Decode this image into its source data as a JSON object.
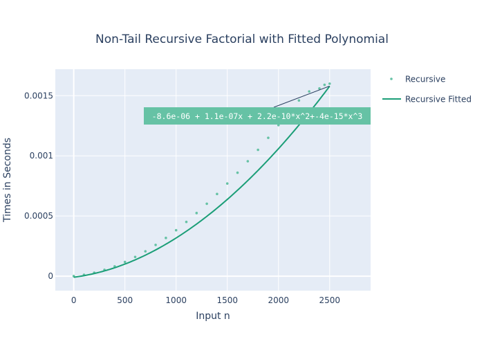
{
  "chart_data": {
    "type": "scatter",
    "title": "Non-Tail Recursive Factorial with Fitted Polynomial",
    "xlabel": "Input n",
    "ylabel": "Times in Seconds",
    "xlim": [
      -180,
      2900
    ],
    "ylim": [
      -0.00012,
      0.00172
    ],
    "xticks": [
      0,
      500,
      1000,
      1500,
      2000,
      2500
    ],
    "xtick_labels": [
      "0",
      "500",
      "1000",
      "1500",
      "2000",
      "2500"
    ],
    "yticks": [
      0,
      0.0005,
      0.001,
      0.0015
    ],
    "ytick_labels": [
      "0",
      "0.0005",
      "0.001",
      "0.0015"
    ],
    "grid": true,
    "legend_position": "right",
    "series": [
      {
        "name": "Recursive",
        "type": "scatter",
        "color": "#66c2a5",
        "x": [
          0,
          100,
          200,
          300,
          400,
          500,
          600,
          700,
          800,
          900,
          1000,
          1100,
          1200,
          1300,
          1400,
          1500,
          1600,
          1700,
          1800,
          1900,
          2000,
          2100,
          2200,
          2300,
          2400,
          2450,
          2500
        ],
        "y": [
          1e-06,
          1.2e-05,
          2.9e-05,
          5.3e-05,
          8.2e-05,
          0.000118,
          0.00016,
          0.000207,
          0.00026,
          0.000318,
          0.000382,
          0.000451,
          0.000525,
          0.000602,
          0.000683,
          0.00077,
          0.00086,
          0.000955,
          0.00105,
          0.00115,
          0.001255,
          0.00136,
          0.00146,
          0.001535,
          0.00156,
          0.00159,
          0.0016
        ]
      },
      {
        "name": "Recursive Fitted",
        "type": "line",
        "color": "#1b9e77",
        "coefficients": [
          -8.6e-06,
          1.1e-07,
          2.2e-10,
          -4e-15
        ],
        "x_range": [
          0,
          2500
        ]
      }
    ],
    "annotations": [
      {
        "text": "-8.6e-06 + 1.1e-07x + 2.2e-10*x^2+-4e-15*x^3",
        "x": 2500,
        "y": 0.00158,
        "background": "#66c2a5",
        "arrowcolor": "#2a3f5f"
      }
    ]
  }
}
